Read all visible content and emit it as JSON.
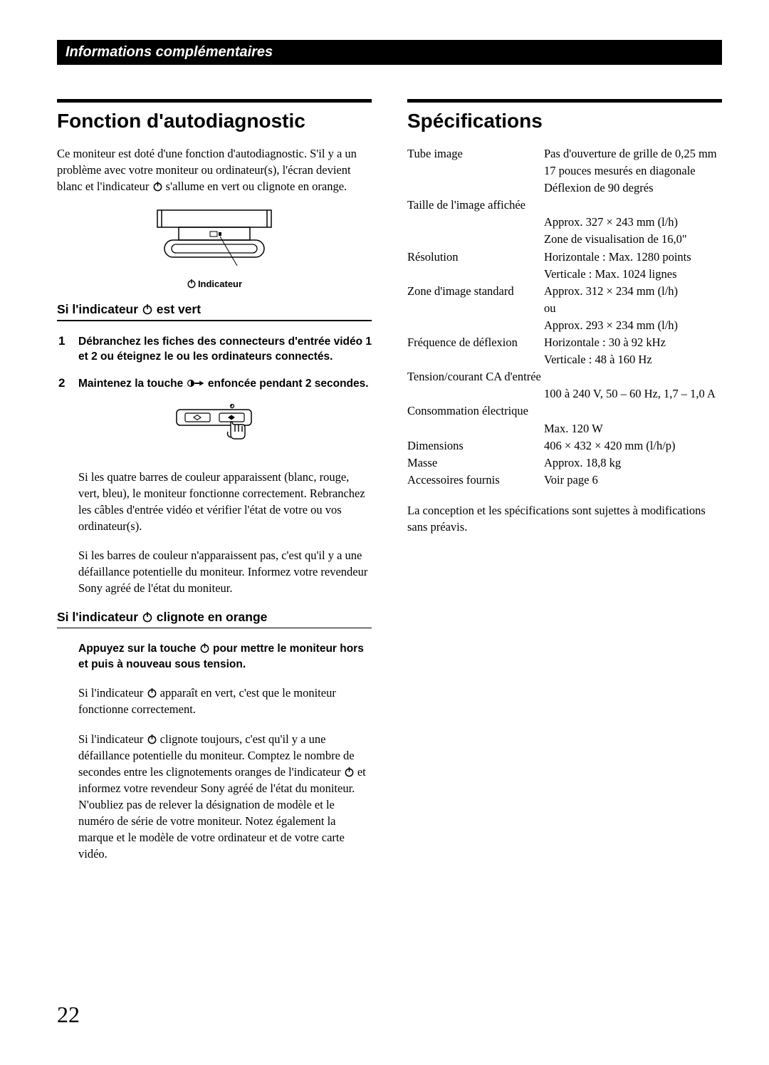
{
  "header": "Informations complémentaires",
  "left": {
    "title": "Fonction d'autodiagnostic",
    "intro_parts": [
      "Ce moniteur est doté d'une fonction d'autodiagnostic. S'il y a un problème avec votre moniteur ou ordinateur(s), l'écran devient blanc et l'indicateur ",
      " s'allume en vert ou clignote en orange."
    ],
    "indicator_label": "Indicateur",
    "sub1_parts": [
      "Si l'indicateur ",
      " est vert"
    ],
    "step1": "Débranchez les fiches des connecteurs d'entrée vidéo 1 et 2 ou éteignez le ou les ordinateurs connectés.",
    "step2_parts": [
      "Maintenez la touche ",
      " enfoncée pendant 2 secondes."
    ],
    "para1": "Si les quatre barres de couleur apparaissent (blanc, rouge, vert, bleu), le moniteur fonctionne correctement. Rebranchez les câbles d'entrée vidéo et vérifier l'état de votre ou vos ordinateur(s).",
    "para2": "Si les barres de couleur n'apparaissent pas, c'est qu'il y a une défaillance potentielle du moniteur. Informez votre revendeur Sony agréé de l'état du moniteur.",
    "sub2_parts": [
      "Si l'indicateur ",
      " clignote en orange"
    ],
    "orange1_parts": [
      "Appuyez sur la touche ",
      " pour mettre le moniteur hors et puis à nouveau sous tension."
    ],
    "orange2_parts": [
      "Si l'indicateur ",
      " apparaît en vert, c'est que le moniteur fonctionne correctement."
    ],
    "orange3_parts": [
      "Si l'indicateur ",
      " clignote toujours, c'est qu'il y a une défaillance potentielle du moniteur. Comptez le nombre de secondes entre les clignotements oranges de l'indicateur ",
      " et informez votre revendeur Sony agréé de l'état du moniteur. N'oubliez pas de relever la désignation de modèle et le numéro de série de votre moniteur. Notez également la marque et le modèle de votre ordinateur et de votre carte vidéo."
    ]
  },
  "right": {
    "title": "Spécifications",
    "rows": [
      {
        "label": "Tube image",
        "values": [
          "Pas d'ouverture de grille de 0,25 mm",
          "17 pouces mesurés en diagonale",
          "Déflexion de 90 degrés"
        ]
      },
      {
        "header": "Taille de l'image affichée",
        "values": [
          "Approx. 327 × 243 mm (l/h)",
          "Zone de visualisation de 16,0\""
        ]
      },
      {
        "label": "Résolution",
        "values": [
          "Horizontale : Max. 1280 points",
          "Verticale : Max. 1024 lignes"
        ]
      },
      {
        "label": "Zone d'image standard",
        "values": [
          "Approx. 312 × 234 mm (l/h)",
          "ou",
          "Approx. 293 × 234 mm (l/h)"
        ]
      },
      {
        "label": "Fréquence de déflexion",
        "values": [
          "Horizontale : 30 à 92 kHz",
          "Verticale : 48 à 160 Hz"
        ]
      },
      {
        "header": "Tension/courant CA d'entrée",
        "values": [
          "100 à 240 V, 50 – 60 Hz, 1,7 – 1,0 A"
        ]
      },
      {
        "header": "Consommation électrique",
        "values": [
          "Max. 120 W"
        ]
      },
      {
        "label": "Dimensions",
        "values": [
          "406 × 432 × 420 mm (l/h/p)"
        ]
      },
      {
        "label": "Masse",
        "values": [
          "Approx. 18,8 kg"
        ]
      },
      {
        "label": "Accessoires fournis",
        "values": [
          "Voir page 6"
        ]
      }
    ],
    "footer": "La conception et les spécifications sont sujettes à modifications sans préavis."
  },
  "page_number": "22"
}
